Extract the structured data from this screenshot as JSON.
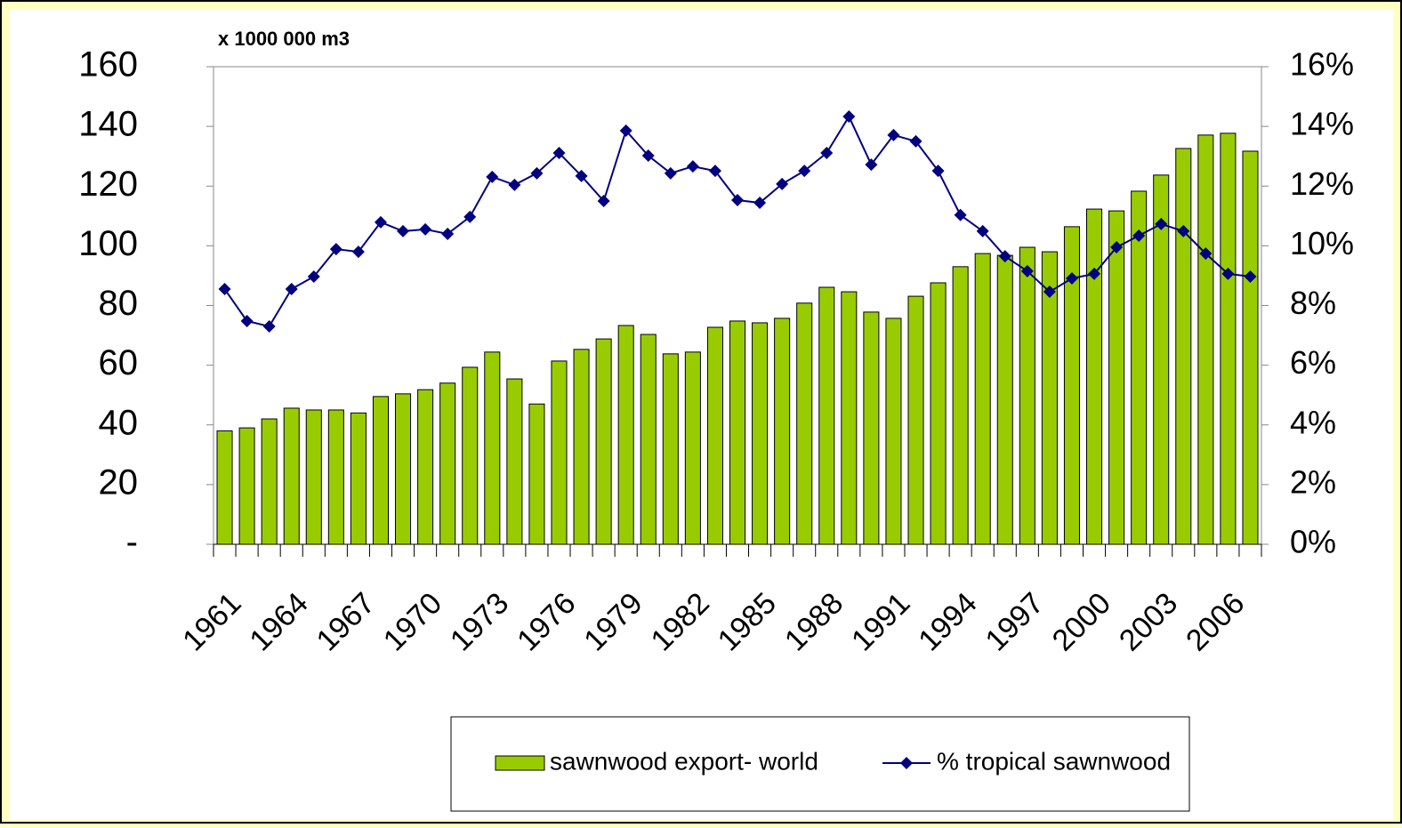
{
  "chart_data": {
    "type": "bar",
    "y_label": "x 1000 000 m3",
    "categories": [
      "1961",
      null,
      null,
      "1964",
      null,
      null,
      "1967",
      null,
      null,
      "1970",
      null,
      null,
      "1973",
      null,
      null,
      "1976",
      null,
      null,
      "1979",
      null,
      null,
      "1982",
      null,
      null,
      "1985",
      null,
      null,
      "1988",
      null,
      null,
      "1991",
      null,
      null,
      "1994",
      null,
      null,
      "1997",
      null,
      null,
      "2000",
      null,
      null,
      "2003",
      null,
      null,
      "2006",
      null
    ],
    "series": [
      {
        "name": "sawnwood export- world",
        "type": "bar",
        "color": "#99cc00",
        "values": [
          38,
          39,
          42,
          45.6,
          45,
          45,
          44,
          49.5,
          50.4,
          51.8,
          54,
          59.3,
          64.4,
          55.4,
          47,
          61.4,
          65.3,
          68.8,
          73.3,
          70.3,
          63.8,
          64.4,
          72.7,
          74.8,
          74.2,
          75.7,
          80.8,
          86.1,
          84.6,
          77.8,
          75.7,
          83.1,
          87.6,
          93,
          97.4,
          96.8,
          99.5,
          98,
          106.4,
          112.3,
          111.7,
          118.3,
          123.7,
          132.6,
          137.1,
          137.7,
          131.7
        ]
      },
      {
        "name": "% tropical sawnwood",
        "type": "line",
        "axis": "y2",
        "color": "#000080",
        "values": [
          8.55,
          7.48,
          7.3,
          8.55,
          8.97,
          9.89,
          9.8,
          10.79,
          10.49,
          10.55,
          10.4,
          10.97,
          12.31,
          12.04,
          12.43,
          13.11,
          12.34,
          11.5,
          13.86,
          13.02,
          12.43,
          12.66,
          12.51,
          11.53,
          11.44,
          12.07,
          12.51,
          13.11,
          14.33,
          12.72,
          13.71,
          13.5,
          12.51,
          11.03,
          10.49,
          9.65,
          9.15,
          8.46,
          8.91,
          9.06,
          9.95,
          10.34,
          10.73,
          10.49,
          9.74,
          9.06,
          8.97
        ]
      }
    ],
    "ylim": [
      0,
      160
    ],
    "yticks": [
      {
        "value": 0,
        "label": "-"
      },
      20,
      40,
      60,
      80,
      100,
      120,
      140,
      160
    ],
    "y2lim": [
      0,
      16
    ],
    "y2ticks": [
      {
        "value": 0,
        "label": "0%"
      },
      {
        "value": 2,
        "label": "2%"
      },
      {
        "value": 4,
        "label": "4%"
      },
      {
        "value": 6,
        "label": "6%"
      },
      {
        "value": 8,
        "label": "8%"
      },
      {
        "value": 10,
        "label": "10%"
      },
      {
        "value": 12,
        "label": "12%"
      },
      {
        "value": 14,
        "label": "14%"
      },
      {
        "value": 16,
        "label": "16%"
      }
    ],
    "grid": false
  }
}
